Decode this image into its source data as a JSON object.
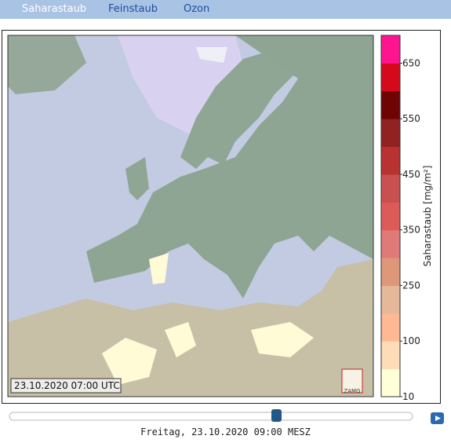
{
  "tabs": [
    "Saharastaub",
    "Feinstaub",
    "Ozon"
  ],
  "map": {
    "timestamp": "23.10.2020 07:00 UTC",
    "logo": "ZAMG"
  },
  "colorbar": {
    "title": "Saharastaub [mg/m²]",
    "ticks": [
      10,
      100,
      250,
      350,
      450,
      550,
      650
    ],
    "colors": [
      "#ffffd8",
      "#ffdcb8",
      "#ffb894",
      "#e4b898",
      "#dc9878",
      "#e07a78",
      "#dc5a58",
      "#c85050",
      "#b83232",
      "#922222",
      "#6e0404",
      "#d40a1c",
      "#ff1490"
    ]
  },
  "footer": {
    "time": "Freitag, 23.10.2020 09:00 MESZ"
  }
}
